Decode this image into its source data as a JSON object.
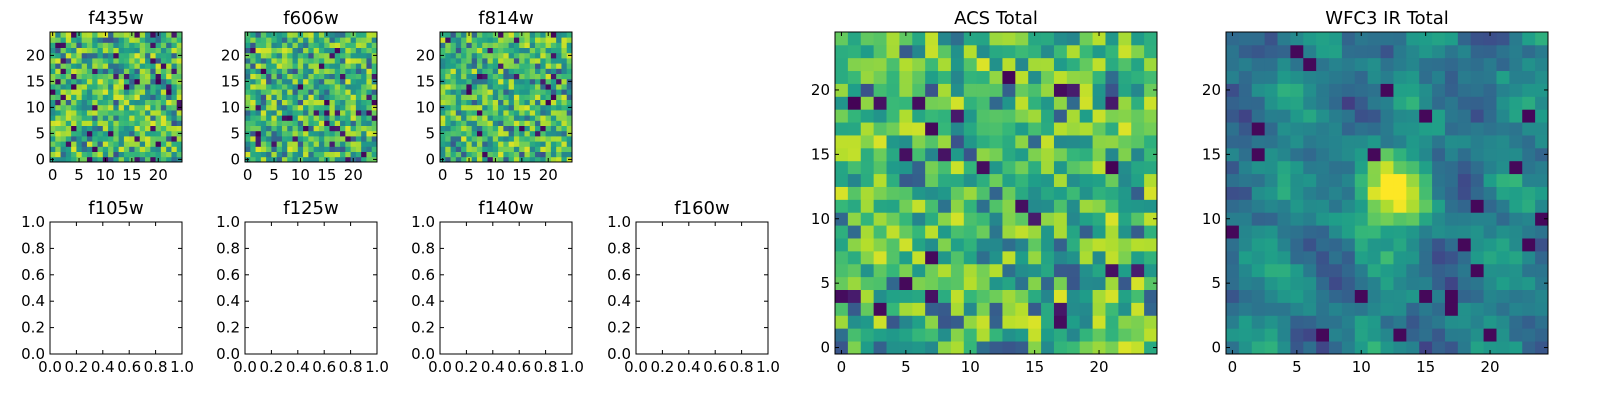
{
  "chart_data": [
    {
      "id": "f435w",
      "type": "heatmap",
      "title": "f435w",
      "colormap": "viridis",
      "grid_size": 25,
      "xlim": [
        -0.5,
        24.5
      ],
      "ylim": [
        -0.5,
        24.5
      ],
      "xticks": [
        0,
        5,
        10,
        15,
        20
      ],
      "yticks": [
        0,
        5,
        10,
        15,
        20
      ],
      "xtick_labels": [
        "0",
        "5",
        "10",
        "15",
        "20"
      ],
      "ytick_labels": [
        "0",
        "5",
        "10",
        "15",
        "20"
      ],
      "value_range": [
        0,
        1
      ],
      "seed": 11,
      "pattern": "noise"
    },
    {
      "id": "f606w",
      "type": "heatmap",
      "title": "f606w",
      "colormap": "viridis",
      "grid_size": 25,
      "xlim": [
        -0.5,
        24.5
      ],
      "ylim": [
        -0.5,
        24.5
      ],
      "xticks": [
        0,
        5,
        10,
        15,
        20
      ],
      "yticks": [
        0,
        5,
        10,
        15,
        20
      ],
      "xtick_labels": [
        "0",
        "5",
        "10",
        "15",
        "20"
      ],
      "ytick_labels": [
        "0",
        "5",
        "10",
        "15",
        "20"
      ],
      "value_range": [
        0,
        1
      ],
      "seed": 23,
      "pattern": "noise"
    },
    {
      "id": "f814w",
      "type": "heatmap",
      "title": "f814w",
      "colormap": "viridis",
      "grid_size": 25,
      "xlim": [
        -0.5,
        24.5
      ],
      "ylim": [
        -0.5,
        24.5
      ],
      "xticks": [
        0,
        5,
        10,
        15,
        20
      ],
      "yticks": [
        0,
        5,
        10,
        15,
        20
      ],
      "xtick_labels": [
        "0",
        "5",
        "10",
        "15",
        "20"
      ],
      "ytick_labels": [
        "0",
        "5",
        "10",
        "15",
        "20"
      ],
      "value_range": [
        0,
        1
      ],
      "seed": 37,
      "pattern": "noise"
    },
    {
      "id": "f105w",
      "type": "empty",
      "title": "f105w",
      "xlim": [
        0,
        1
      ],
      "ylim": [
        0,
        1
      ],
      "xticks": [
        0,
        0.2,
        0.4,
        0.6,
        0.8,
        1.0
      ],
      "yticks": [
        0,
        0.2,
        0.4,
        0.6,
        0.8,
        1.0
      ],
      "xtick_labels": [
        "0.0",
        "0.2",
        "0.4",
        "0.6",
        "0.8",
        "1.0"
      ],
      "ytick_labels": [
        "0.0",
        "0.2",
        "0.4",
        "0.6",
        "0.8",
        "1.0"
      ]
    },
    {
      "id": "f125w",
      "type": "empty",
      "title": "f125w",
      "xlim": [
        0,
        1
      ],
      "ylim": [
        0,
        1
      ],
      "xticks": [
        0,
        0.2,
        0.4,
        0.6,
        0.8,
        1.0
      ],
      "yticks": [
        0,
        0.2,
        0.4,
        0.6,
        0.8,
        1.0
      ],
      "xtick_labels": [
        "0.0",
        "0.2",
        "0.4",
        "0.6",
        "0.8",
        "1.0"
      ],
      "ytick_labels": [
        "0.0",
        "0.2",
        "0.4",
        "0.6",
        "0.8",
        "1.0"
      ]
    },
    {
      "id": "f140w",
      "type": "empty",
      "title": "f140w",
      "xlim": [
        0,
        1
      ],
      "ylim": [
        0,
        1
      ],
      "xticks": [
        0,
        0.2,
        0.4,
        0.6,
        0.8,
        1.0
      ],
      "yticks": [
        0,
        0.2,
        0.4,
        0.6,
        0.8,
        1.0
      ],
      "xtick_labels": [
        "0.0",
        "0.2",
        "0.4",
        "0.6",
        "0.8",
        "1.0"
      ],
      "ytick_labels": [
        "0.0",
        "0.2",
        "0.4",
        "0.6",
        "0.8",
        "1.0"
      ]
    },
    {
      "id": "f160w",
      "type": "empty",
      "title": "f160w",
      "xlim": [
        0,
        1
      ],
      "ylim": [
        0,
        1
      ],
      "xticks": [
        0,
        0.2,
        0.4,
        0.6,
        0.8,
        1.0
      ],
      "yticks": [
        0,
        0.2,
        0.4,
        0.6,
        0.8,
        1.0
      ],
      "xtick_labels": [
        "0.0",
        "0.2",
        "0.4",
        "0.6",
        "0.8",
        "1.0"
      ],
      "ytick_labels": [
        "0.0",
        "0.2",
        "0.4",
        "0.6",
        "0.8",
        "1.0"
      ]
    },
    {
      "id": "acs_total",
      "type": "heatmap",
      "title": "ACS Total",
      "colormap": "viridis",
      "grid_size": 25,
      "xlim": [
        -0.5,
        24.5
      ],
      "ylim": [
        -0.5,
        24.5
      ],
      "xticks": [
        0,
        5,
        10,
        15,
        20
      ],
      "yticks": [
        0,
        5,
        10,
        15,
        20
      ],
      "xtick_labels": [
        "0",
        "5",
        "10",
        "15",
        "20"
      ],
      "ytick_labels": [
        "0",
        "5",
        "10",
        "15",
        "20"
      ],
      "value_range": [
        0,
        1
      ],
      "seed": 53,
      "pattern": "noise"
    },
    {
      "id": "wfc3_ir_total",
      "type": "heatmap",
      "title": "WFC3 IR Total",
      "colormap": "viridis",
      "grid_size": 25,
      "xlim": [
        -0.5,
        24.5
      ],
      "ylim": [
        -0.5,
        24.5
      ],
      "xticks": [
        0,
        5,
        10,
        15,
        20
      ],
      "yticks": [
        0,
        5,
        10,
        15,
        20
      ],
      "xtick_labels": [
        "0",
        "5",
        "10",
        "15",
        "20"
      ],
      "ytick_labels": [
        "0",
        "5",
        "10",
        "15",
        "20"
      ],
      "value_range": [
        0,
        1
      ],
      "seed": 71,
      "pattern": "smooth-source",
      "source_center": [
        12,
        12
      ],
      "source_peak": 0.95
    }
  ]
}
